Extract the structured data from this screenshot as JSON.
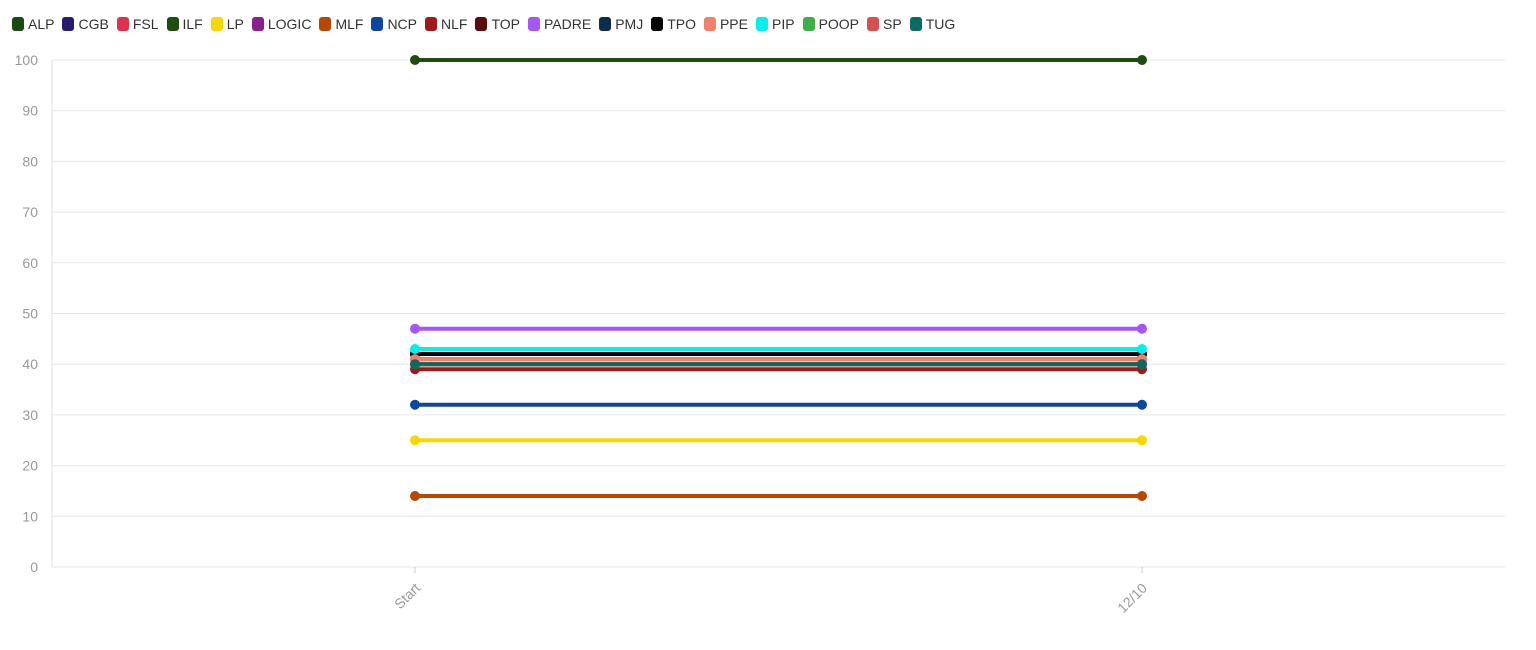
{
  "chart_data": {
    "type": "line",
    "categories": [
      "Start",
      "12/10"
    ],
    "ylim": [
      0,
      100
    ],
    "yticks": [
      0,
      10,
      20,
      30,
      40,
      50,
      60,
      70,
      80,
      90,
      100
    ],
    "grid": true,
    "legend_position": "top-left",
    "title": "",
    "xlabel": "",
    "ylabel": "",
    "series": [
      {
        "name": "ALP",
        "color": "#1a4a10",
        "values": [
          42,
          42
        ]
      },
      {
        "name": "CGB",
        "color": "#2a1a6e",
        "values": [
          41,
          41
        ]
      },
      {
        "name": "FSL",
        "color": "#e0324c",
        "values": [
          41,
          41
        ]
      },
      {
        "name": "ILF",
        "color": "#1e4d0e",
        "values": [
          100,
          100
        ]
      },
      {
        "name": "LP",
        "color": "#f5d800",
        "values": [
          25,
          25
        ]
      },
      {
        "name": "LOGIC",
        "color": "#8b1f8f",
        "values": [
          40,
          40
        ]
      },
      {
        "name": "MLF",
        "color": "#b84700",
        "values": [
          14,
          14
        ]
      },
      {
        "name": "NCP",
        "color": "#0b47a1",
        "values": [
          32,
          32
        ]
      },
      {
        "name": "NLF",
        "color": "#a31818",
        "values": [
          39,
          39
        ]
      },
      {
        "name": "TOP",
        "color": "#5c0a0a",
        "values": [
          40,
          40
        ]
      },
      {
        "name": "PADRE",
        "color": "#a855f7",
        "values": [
          47,
          47
        ]
      },
      {
        "name": "PMJ",
        "color": "#0d2d4f",
        "values": [
          42,
          42
        ]
      },
      {
        "name": "TPO",
        "color": "#050505",
        "values": [
          42,
          42
        ]
      },
      {
        "name": "PPE",
        "color": "#f47f6b",
        "values": [
          41,
          41
        ]
      },
      {
        "name": "PIP",
        "color": "#00f0f0",
        "values": [
          43,
          43
        ]
      },
      {
        "name": "POOP",
        "color": "#3cb043",
        "values": [
          40,
          40
        ]
      },
      {
        "name": "SP",
        "color": "#d84f4f",
        "values": [
          40,
          40
        ]
      },
      {
        "name": "TUG",
        "color": "#0a6b62",
        "values": [
          40,
          40
        ]
      }
    ]
  }
}
